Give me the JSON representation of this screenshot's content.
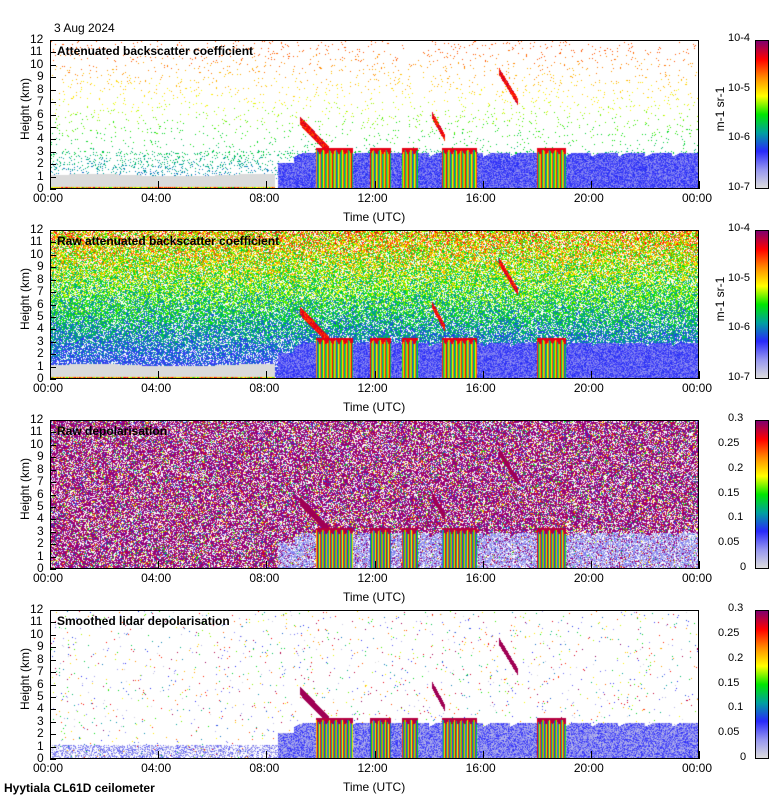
{
  "header": {
    "date": "3 Aug 2024"
  },
  "footer": {
    "site": "Hyytiala CL61D ceilometer"
  },
  "chart_data": [
    {
      "type": "heatmap",
      "title": "Attenuated backscatter coefficient",
      "xlabel": "Time (UTC)",
      "ylabel": "Height (km)",
      "xticks": [
        "00:00",
        "04:00",
        "08:00",
        "12:00",
        "16:00",
        "20:00",
        "00:00"
      ],
      "yticks": [
        "0",
        "1",
        "2",
        "3",
        "4",
        "5",
        "6",
        "7",
        "8",
        "9",
        "10",
        "11",
        "12"
      ],
      "ylim": [
        0,
        12
      ],
      "xlim": [
        0,
        24
      ],
      "colorbar": {
        "scale": "log",
        "label": "m-1 sr-1",
        "ticks": [
          "10-7",
          "10-6",
          "10-5",
          "10-4"
        ],
        "range": [
          1e-07,
          0.0001
        ]
      },
      "mode": "sparse"
    },
    {
      "type": "heatmap",
      "title": "Raw attenuated backscatter coefficient",
      "xlabel": "Time (UTC)",
      "ylabel": "Height (km)",
      "xticks": [
        "00:00",
        "04:00",
        "08:00",
        "12:00",
        "16:00",
        "20:00",
        "00:00"
      ],
      "yticks": [
        "0",
        "1",
        "2",
        "3",
        "4",
        "5",
        "6",
        "7",
        "8",
        "9",
        "10",
        "11",
        "12"
      ],
      "ylim": [
        0,
        12
      ],
      "xlim": [
        0,
        24
      ],
      "colorbar": {
        "scale": "log",
        "label": "m-1 sr-1",
        "ticks": [
          "10-7",
          "10-6",
          "10-5",
          "10-4"
        ],
        "range": [
          1e-07,
          0.0001
        ]
      },
      "mode": "rawbeta"
    },
    {
      "type": "heatmap",
      "title": "Raw depolarisation",
      "xlabel": "Time (UTC)",
      "ylabel": "Height (km)",
      "xticks": [
        "00:00",
        "04:00",
        "08:00",
        "12:00",
        "16:00",
        "20:00",
        "00:00"
      ],
      "yticks": [
        "0",
        "1",
        "2",
        "3",
        "4",
        "5",
        "6",
        "7",
        "8",
        "9",
        "10",
        "11",
        "12"
      ],
      "ylim": [
        0,
        12
      ],
      "xlim": [
        0,
        24
      ],
      "colorbar": {
        "scale": "linear",
        "label": "",
        "ticks": [
          "0",
          "0.05",
          "0.1",
          "0.15",
          "0.2",
          "0.25",
          "0.3"
        ],
        "range": [
          0,
          0.3
        ]
      },
      "mode": "rawdepol"
    },
    {
      "type": "heatmap",
      "title": "Smoothed lidar depolarisation",
      "xlabel": "Time (UTC)",
      "ylabel": "Height (km)",
      "xticks": [
        "00:00",
        "04:00",
        "08:00",
        "12:00",
        "16:00",
        "20:00",
        "00:00"
      ],
      "yticks": [
        "0",
        "1",
        "2",
        "3",
        "4",
        "5",
        "6",
        "7",
        "8",
        "9",
        "10",
        "11",
        "12"
      ],
      "ylim": [
        0,
        12
      ],
      "xlim": [
        0,
        24
      ],
      "colorbar": {
        "scale": "linear",
        "label": "",
        "ticks": [
          "0",
          "0.05",
          "0.1",
          "0.15",
          "0.2",
          "0.25",
          "0.3"
        ],
        "range": [
          0,
          0.3
        ]
      },
      "mode": "depol"
    }
  ]
}
